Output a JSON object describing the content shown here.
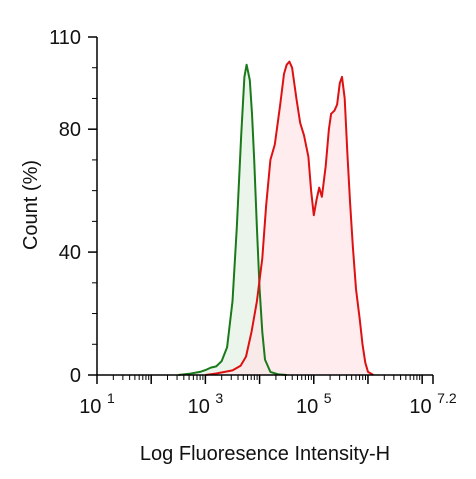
{
  "chart_data": {
    "type": "area",
    "title": "",
    "xlabel": "Log Fluoresence Intensity-H",
    "ylabel": "Count  (%)",
    "x_scale": "log10",
    "xlim": [
      1,
      7.2
    ],
    "ylim": [
      0,
      110
    ],
    "x_tick_labels": [
      {
        "base": "10",
        "exp": "1",
        "value": 1
      },
      {
        "base": "10",
        "exp": "3",
        "value": 3
      },
      {
        "base": "10",
        "exp": "5",
        "value": 5
      },
      {
        "base": "10",
        "exp": "7.2",
        "value": 7.2
      }
    ],
    "y_ticks": [
      0,
      40,
      80,
      110
    ],
    "grid": false,
    "legend": "none",
    "series": [
      {
        "color": "#1a7a1a",
        "fill": "#e6f2e6",
        "points": [
          [
            2.5,
            0
          ],
          [
            2.7,
            0.4
          ],
          [
            2.9,
            1.0
          ],
          [
            3.0,
            1.6
          ],
          [
            3.1,
            2.4
          ],
          [
            3.2,
            2.8
          ],
          [
            3.3,
            4.5
          ],
          [
            3.4,
            9
          ],
          [
            3.5,
            24
          ],
          [
            3.58,
            48
          ],
          [
            3.66,
            78
          ],
          [
            3.72,
            97
          ],
          [
            3.76,
            101
          ],
          [
            3.82,
            96
          ],
          [
            3.86,
            85
          ],
          [
            3.9,
            70
          ],
          [
            3.95,
            48
          ],
          [
            4.0,
            28
          ],
          [
            4.05,
            14
          ],
          [
            4.1,
            5
          ],
          [
            4.2,
            1
          ],
          [
            4.35,
            0.2
          ],
          [
            4.5,
            0
          ]
        ]
      },
      {
        "color": "#dd1111",
        "fill": "#fde6ea",
        "points": [
          [
            3.0,
            0
          ],
          [
            3.2,
            0.5
          ],
          [
            3.5,
            1.5
          ],
          [
            3.65,
            3
          ],
          [
            3.75,
            6
          ],
          [
            3.85,
            14
          ],
          [
            3.95,
            24
          ],
          [
            4.05,
            38
          ],
          [
            4.12,
            55
          ],
          [
            4.2,
            70
          ],
          [
            4.28,
            75
          ],
          [
            4.38,
            88
          ],
          [
            4.45,
            98
          ],
          [
            4.5,
            101
          ],
          [
            4.55,
            102
          ],
          [
            4.6,
            100
          ],
          [
            4.68,
            90
          ],
          [
            4.75,
            82
          ],
          [
            4.82,
            78
          ],
          [
            4.9,
            71
          ],
          [
            4.95,
            60
          ],
          [
            5.0,
            52
          ],
          [
            5.05,
            57
          ],
          [
            5.1,
            61
          ],
          [
            5.15,
            58
          ],
          [
            5.22,
            68
          ],
          [
            5.28,
            80
          ],
          [
            5.32,
            85
          ],
          [
            5.38,
            86
          ],
          [
            5.43,
            88
          ],
          [
            5.48,
            95
          ],
          [
            5.52,
            97
          ],
          [
            5.57,
            90
          ],
          [
            5.62,
            72
          ],
          [
            5.67,
            56
          ],
          [
            5.72,
            42
          ],
          [
            5.78,
            28
          ],
          [
            5.85,
            18
          ],
          [
            5.9,
            10
          ],
          [
            5.95,
            4
          ],
          [
            6.0,
            1
          ],
          [
            6.1,
            0
          ]
        ]
      }
    ]
  }
}
